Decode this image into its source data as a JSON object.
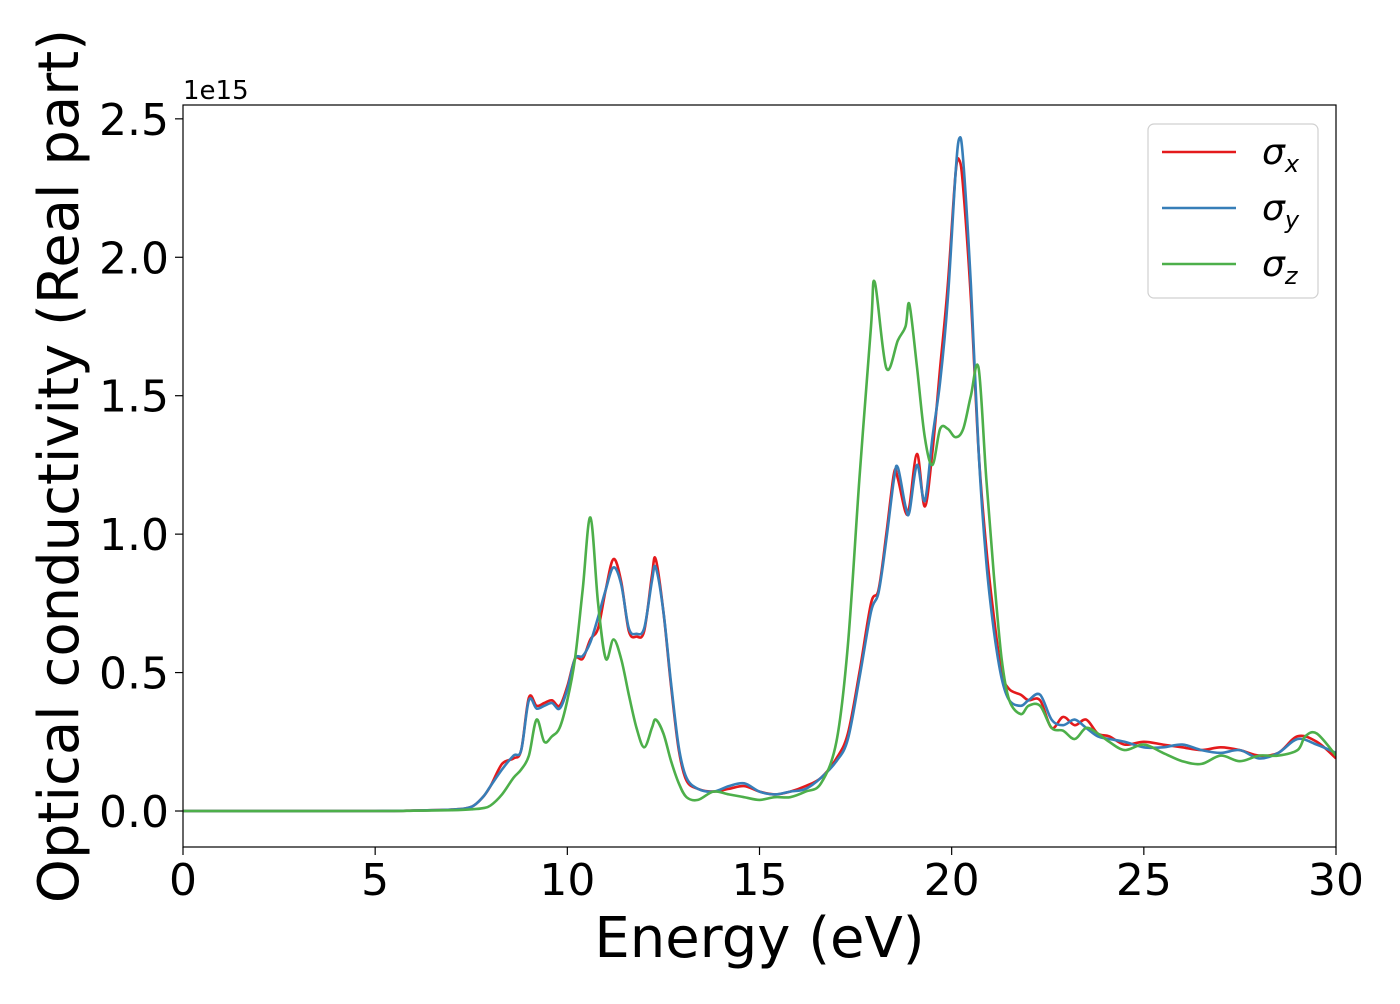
{
  "chart_data": {
    "type": "line",
    "title": "",
    "xlabel": "Energy (eV)",
    "ylabel": "Optical conductivity (Real part)",
    "y_offset_text": "1e15",
    "y_scale_factor": 1000000000000000.0,
    "xlim": [
      0,
      30
    ],
    "ylim": [
      -0.13,
      2.55
    ],
    "xticks": [
      0,
      5,
      10,
      15,
      20,
      25,
      30
    ],
    "xtick_labels": [
      "0",
      "5",
      "10",
      "15",
      "20",
      "25",
      "30"
    ],
    "yticks": [
      0.0,
      0.5,
      1.0,
      1.5,
      2.0,
      2.5
    ],
    "ytick_labels": [
      "0.0",
      "0.5",
      "1.0",
      "1.5",
      "2.0",
      "2.5"
    ],
    "grid": false,
    "legend_position": "top-right",
    "series": [
      {
        "name": "σ",
        "subscript": "x",
        "color": "#e41a1c",
        "x": [
          0,
          5,
          6,
          7,
          7.5,
          7.8,
          8,
          8.3,
          8.6,
          8.8,
          9,
          9.2,
          9.4,
          9.6,
          9.8,
          10,
          10.2,
          10.4,
          10.6,
          10.8,
          11,
          11.2,
          11.4,
          11.6,
          11.8,
          12,
          12.2,
          12.3,
          12.5,
          12.7,
          12.9,
          13.1,
          13.4,
          13.8,
          14.2,
          14.6,
          15,
          15.4,
          15.8,
          16.2,
          16.6,
          17,
          17.3,
          17.6,
          17.9,
          18.1,
          18.3,
          18.5,
          18.6,
          18.8,
          18.9,
          19.1,
          19.3,
          19.5,
          19.7,
          19.9,
          20.1,
          20.2,
          20.3,
          20.5,
          20.7,
          20.9,
          21.1,
          21.3,
          21.5,
          21.8,
          22,
          22.3,
          22.6,
          22.9,
          23.2,
          23.5,
          23.8,
          24.1,
          24.5,
          25,
          25.5,
          26,
          26.5,
          27,
          27.5,
          28,
          28.5,
          29,
          29.5,
          30
        ],
        "values": [
          0,
          0,
          0.002,
          0.005,
          0.015,
          0.05,
          0.09,
          0.17,
          0.19,
          0.22,
          0.41,
          0.38,
          0.39,
          0.4,
          0.38,
          0.45,
          0.55,
          0.55,
          0.62,
          0.66,
          0.8,
          0.91,
          0.83,
          0.65,
          0.63,
          0.65,
          0.85,
          0.91,
          0.72,
          0.45,
          0.22,
          0.11,
          0.08,
          0.07,
          0.08,
          0.09,
          0.07,
          0.06,
          0.07,
          0.09,
          0.12,
          0.19,
          0.28,
          0.5,
          0.75,
          0.8,
          1.0,
          1.22,
          1.2,
          1.08,
          1.1,
          1.29,
          1.1,
          1.3,
          1.6,
          1.9,
          2.3,
          2.35,
          2.25,
          1.85,
          1.3,
          0.95,
          0.7,
          0.5,
          0.44,
          0.42,
          0.4,
          0.4,
          0.3,
          0.34,
          0.31,
          0.33,
          0.28,
          0.27,
          0.24,
          0.25,
          0.24,
          0.23,
          0.22,
          0.23,
          0.22,
          0.2,
          0.21,
          0.27,
          0.25,
          0.19
        ]
      },
      {
        "name": "σ",
        "subscript": "y",
        "color": "#377eb8",
        "x": [
          0,
          5,
          6,
          7,
          7.5,
          7.8,
          8,
          8.3,
          8.6,
          8.8,
          9,
          9.2,
          9.4,
          9.6,
          9.8,
          10,
          10.2,
          10.4,
          10.6,
          10.8,
          11,
          11.2,
          11.4,
          11.6,
          11.8,
          12,
          12.2,
          12.3,
          12.5,
          12.7,
          12.9,
          13.1,
          13.4,
          13.8,
          14.2,
          14.6,
          15,
          15.4,
          15.8,
          16.2,
          16.6,
          17,
          17.3,
          17.6,
          17.9,
          18.1,
          18.3,
          18.5,
          18.6,
          18.8,
          18.9,
          19.1,
          19.3,
          19.5,
          19.7,
          19.9,
          20.1,
          20.2,
          20.3,
          20.5,
          20.7,
          20.9,
          21.1,
          21.3,
          21.5,
          21.8,
          22,
          22.3,
          22.6,
          22.9,
          23.2,
          23.5,
          23.8,
          24.1,
          24.5,
          25,
          25.5,
          26,
          26.5,
          27,
          27.5,
          28,
          28.5,
          29,
          29.5,
          30
        ],
        "values": [
          0,
          0,
          0.002,
          0.005,
          0.015,
          0.05,
          0.09,
          0.15,
          0.2,
          0.22,
          0.4,
          0.37,
          0.38,
          0.39,
          0.37,
          0.44,
          0.55,
          0.56,
          0.61,
          0.7,
          0.8,
          0.88,
          0.82,
          0.66,
          0.64,
          0.66,
          0.83,
          0.88,
          0.72,
          0.46,
          0.23,
          0.12,
          0.08,
          0.07,
          0.09,
          0.1,
          0.07,
          0.06,
          0.07,
          0.08,
          0.12,
          0.18,
          0.26,
          0.48,
          0.72,
          0.79,
          0.98,
          1.2,
          1.24,
          1.1,
          1.08,
          1.25,
          1.12,
          1.35,
          1.55,
          1.85,
          2.3,
          2.43,
          2.35,
          1.9,
          1.3,
          0.9,
          0.65,
          0.48,
          0.4,
          0.38,
          0.4,
          0.42,
          0.33,
          0.31,
          0.33,
          0.3,
          0.27,
          0.26,
          0.25,
          0.23,
          0.23,
          0.24,
          0.22,
          0.21,
          0.22,
          0.19,
          0.21,
          0.26,
          0.24,
          0.21
        ]
      },
      {
        "name": "σ",
        "subscript": "z",
        "color": "#4daf4a",
        "x": [
          0,
          5,
          6,
          7,
          7.5,
          7.8,
          8,
          8.3,
          8.6,
          8.8,
          9,
          9.2,
          9.4,
          9.6,
          9.8,
          10,
          10.2,
          10.4,
          10.6,
          10.8,
          11,
          11.2,
          11.4,
          11.6,
          11.8,
          12,
          12.2,
          12.3,
          12.5,
          12.7,
          12.9,
          13.1,
          13.4,
          13.8,
          14.2,
          14.6,
          15,
          15.4,
          15.8,
          16.2,
          16.6,
          17,
          17.3,
          17.6,
          17.9,
          18,
          18.3,
          18.6,
          18.8,
          18.9,
          19.1,
          19.3,
          19.5,
          19.7,
          19.9,
          20.1,
          20.3,
          20.5,
          20.7,
          20.9,
          21.1,
          21.3,
          21.5,
          21.8,
          22,
          22.3,
          22.6,
          22.9,
          23.2,
          23.5,
          23.8,
          24.1,
          24.5,
          25,
          25.5,
          26,
          26.5,
          27,
          27.5,
          28,
          28.5,
          29,
          29.2,
          29.5,
          30
        ],
        "values": [
          0,
          0,
          0.001,
          0.003,
          0.006,
          0.01,
          0.02,
          0.06,
          0.12,
          0.15,
          0.2,
          0.33,
          0.25,
          0.27,
          0.3,
          0.4,
          0.55,
          0.8,
          1.06,
          0.75,
          0.55,
          0.62,
          0.55,
          0.42,
          0.3,
          0.23,
          0.3,
          0.33,
          0.28,
          0.18,
          0.1,
          0.05,
          0.04,
          0.07,
          0.06,
          0.05,
          0.04,
          0.05,
          0.05,
          0.07,
          0.1,
          0.25,
          0.6,
          1.2,
          1.75,
          1.91,
          1.6,
          1.7,
          1.75,
          1.83,
          1.6,
          1.35,
          1.25,
          1.38,
          1.38,
          1.35,
          1.38,
          1.5,
          1.6,
          1.2,
          0.85,
          0.55,
          0.4,
          0.35,
          0.38,
          0.38,
          0.3,
          0.29,
          0.26,
          0.3,
          0.28,
          0.25,
          0.22,
          0.24,
          0.21,
          0.18,
          0.17,
          0.2,
          0.18,
          0.2,
          0.2,
          0.22,
          0.27,
          0.28,
          0.2
        ]
      }
    ]
  }
}
